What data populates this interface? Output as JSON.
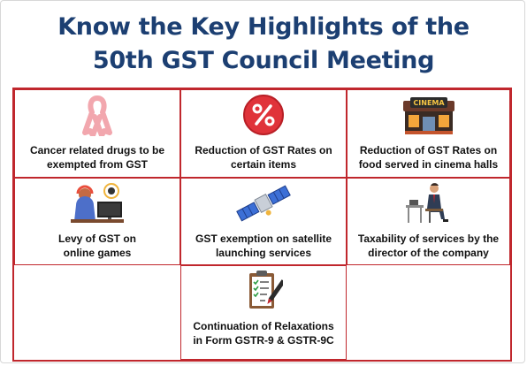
{
  "title": {
    "line1": "Know the Key Highlights of the",
    "line2": "50th GST Council Meeting"
  },
  "cards": [
    {
      "icon": "pink-ribbon-icon",
      "label": "Cancer related drugs to be\nexempted from GST"
    },
    {
      "icon": "percent-badge-icon",
      "label": "Reduction of GST Rates on\ncertain items"
    },
    {
      "icon": "cinema-building-icon",
      "label": "Reduction of GST Rates on\nfood served in cinema halls"
    },
    {
      "icon": "online-gamer-icon",
      "label": "Levy of GST on\nonline games"
    },
    {
      "icon": "satellite-icon",
      "label": "GST exemption on satellite\nlaunching services"
    },
    {
      "icon": "businessman-at-desk-icon",
      "label": "Taxability of services by the\ndirector of the company"
    },
    {
      "icon": "clipboard-checklist-icon",
      "label": "Continuation of Relaxations\nin Form GSTR-9 & GSTR-9C"
    }
  ],
  "colors": {
    "title": "#1c3f72",
    "border": "#c0272d",
    "ribbon": "#f2a7ae",
    "percent_badge": "#e0333a"
  },
  "cinema_sign": "CINEMA"
}
